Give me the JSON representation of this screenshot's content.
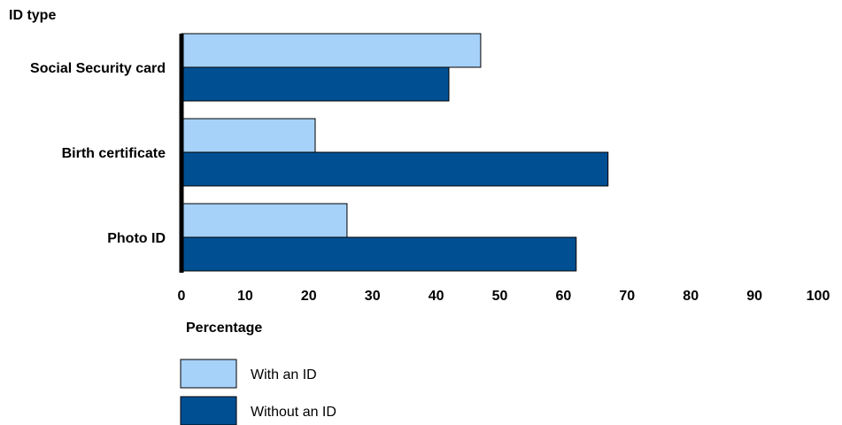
{
  "chart_data": {
    "type": "bar",
    "orientation": "horizontal",
    "title": "",
    "ylabel": "ID type",
    "xlabel": "Percentage",
    "categories": [
      "Social Security card",
      "Birth certificate",
      "Photo ID"
    ],
    "series": [
      {
        "name": "With an ID",
        "color": "#a6d1f9",
        "values": [
          47,
          21,
          26
        ]
      },
      {
        "name": "Without an ID",
        "color": "#004f93",
        "values": [
          42,
          67,
          62
        ]
      }
    ],
    "xlim": [
      0,
      100
    ],
    "xticks": [
      "0",
      "10",
      "20",
      "30",
      "40",
      "50",
      "60",
      "70",
      "80",
      "90",
      "100"
    ],
    "grid": false,
    "legend_position": "bottom-left"
  }
}
